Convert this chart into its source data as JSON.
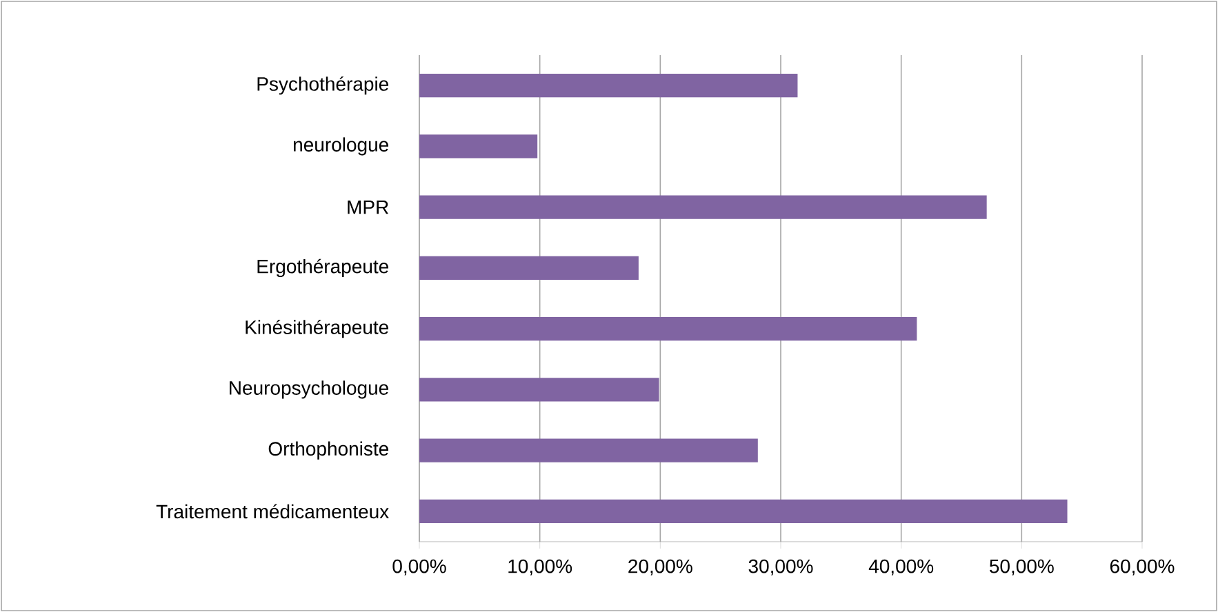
{
  "chart_data": {
    "type": "bar",
    "orientation": "horizontal",
    "categories": [
      "Psychothérapie",
      "neurologue",
      "MPR",
      "Ergothérapeute",
      "Kinésithérapeute",
      "Neuropsychologue",
      "Orthophoniste",
      "Traitement médicamenteux"
    ],
    "values": [
      31.4,
      9.8,
      47.1,
      18.2,
      41.3,
      19.9,
      28.1,
      53.8
    ],
    "color": "#8064a2",
    "xlim": [
      0,
      60
    ],
    "xticks": [
      {
        "value": 0,
        "label": "0,00%"
      },
      {
        "value": 10,
        "label": "10,00%"
      },
      {
        "value": 20,
        "label": "20,00%"
      },
      {
        "value": 30,
        "label": "30,00%"
      },
      {
        "value": 40,
        "label": "40,00%"
      },
      {
        "value": 50,
        "label": "50,00%"
      },
      {
        "value": 60,
        "label": "60,00%"
      }
    ],
    "grid": "x"
  }
}
